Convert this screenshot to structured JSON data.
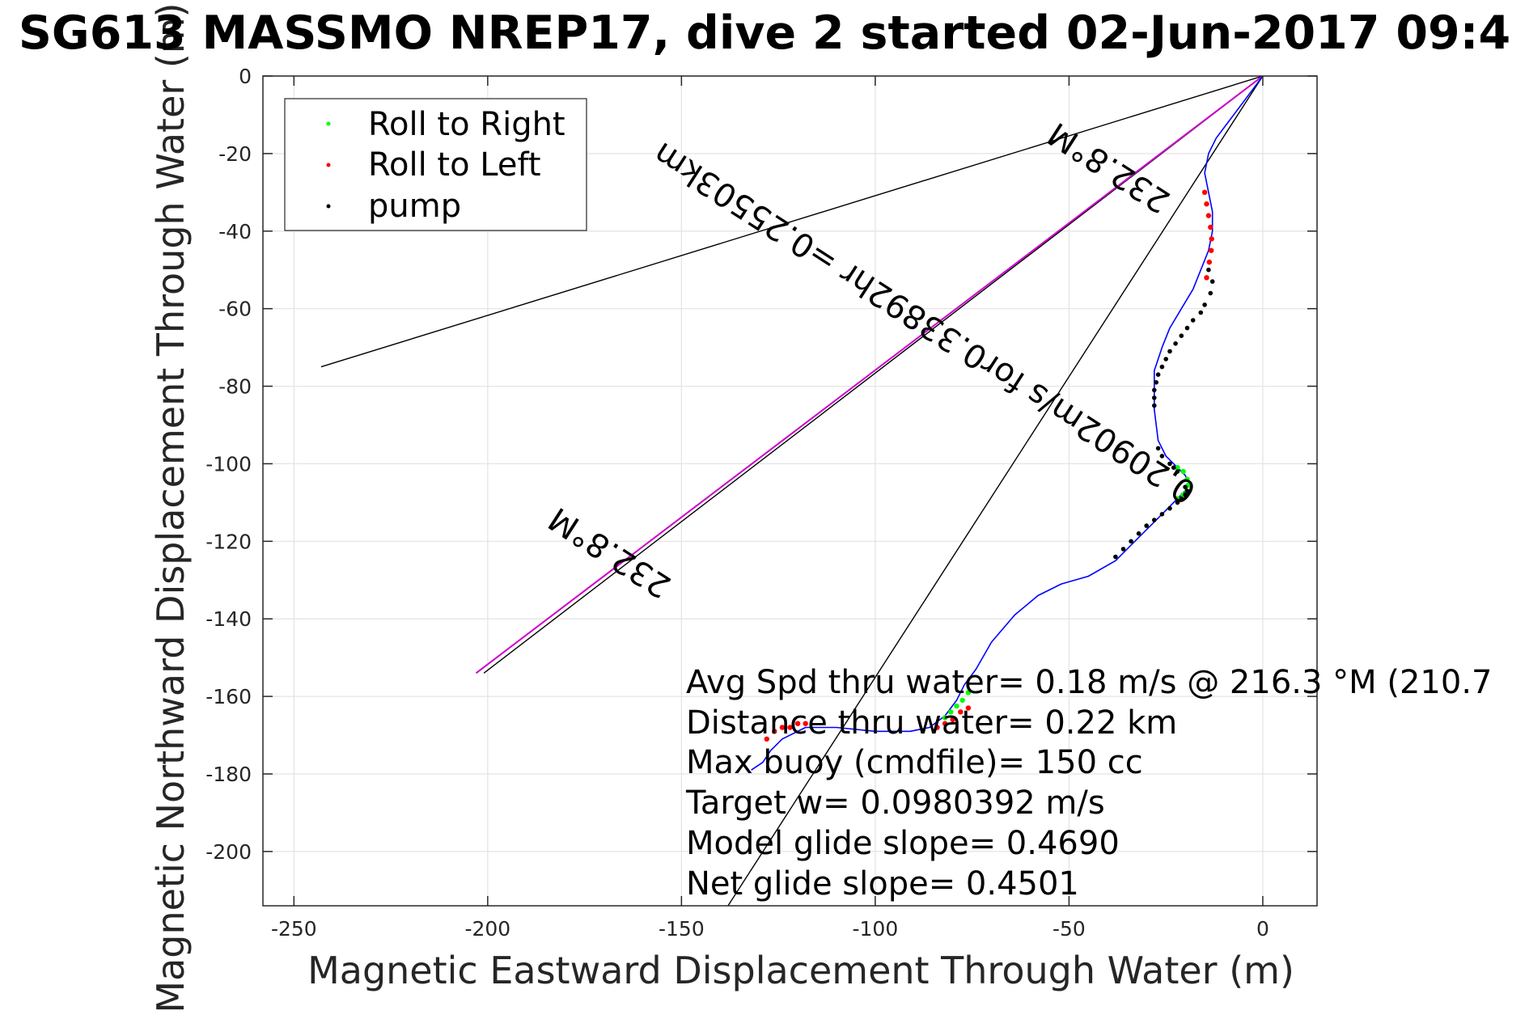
{
  "chart_data": {
    "type": "line",
    "title": "SG613 MASSMO NREP17, dive 2 started 02-Jun-2017 09:4",
    "xlabel": "Magnetic Eastward Displacement Through Water (m)",
    "ylabel": "Magnetic Northward Displacement Through Water (m)",
    "xlim": [
      -258,
      14
    ],
    "ylim": [
      -214,
      0
    ],
    "xticks": [
      -250,
      -200,
      -150,
      -100,
      -50,
      0
    ],
    "yticks": [
      0,
      -20,
      -40,
      -60,
      -80,
      -100,
      -120,
      -140,
      -160,
      -180,
      -200
    ],
    "grid": true,
    "legend": {
      "position": "top-left",
      "entries": [
        {
          "label": "Roll to Right",
          "color": "#00ff00",
          "marker": "dot"
        },
        {
          "label": "Roll to Left",
          "color": "#ff0000",
          "marker": "dot"
        },
        {
          "label": "pump",
          "color": "#000000",
          "marker": "dot"
        }
      ]
    },
    "series": [
      {
        "role": "track",
        "color": "#0000ff",
        "x": [
          0,
          -3,
          -6,
          -9,
          -12,
          -14,
          -15,
          -14,
          -13,
          -13,
          -14,
          -16,
          -18,
          -21,
          -24,
          -26,
          -28,
          -28,
          -27,
          -25,
          -22,
          -20,
          -19,
          -20,
          -22,
          -27,
          -33,
          -38,
          -45,
          -52,
          -58,
          -64,
          -70,
          -74,
          -77,
          -79,
          -82,
          -86,
          -91,
          -100,
          -110,
          -118,
          -124,
          -127,
          -129,
          -132
        ],
        "y": [
          0,
          -4,
          -8,
          -12,
          -16,
          -20,
          -25,
          -30,
          -35,
          -40,
          -45,
          -50,
          -55,
          -60,
          -65,
          -70,
          -76,
          -86,
          -94,
          -98,
          -101,
          -103,
          -105,
          -107,
          -109,
          -114,
          -120,
          -125,
          -129,
          -131,
          -134,
          -139,
          -146,
          -153,
          -157,
          -161,
          -165,
          -168,
          -169,
          -169,
          -168,
          -168,
          -171,
          -174,
          -177,
          -179
        ]
      },
      {
        "role": "roll-left",
        "color": "#ff0000",
        "x": [
          -15,
          -14.5,
          -14,
          -13.5,
          -13.2,
          -13.3,
          -13.8,
          -14.5,
          -76,
          -78,
          -80,
          -82,
          -84,
          -118,
          -120,
          -122,
          -124,
          -126,
          -128
        ],
        "y": [
          -30,
          -33,
          -36,
          -39,
          -42,
          -45,
          -48,
          -52,
          -163,
          -164,
          -166,
          -167,
          -168,
          -167,
          -167,
          -168,
          -168,
          -169,
          -171
        ]
      },
      {
        "role": "roll-right",
        "color": "#00ff00",
        "x": [
          -22,
          -20.5,
          -19.5,
          -19.2,
          -19.6,
          -20.6,
          -22,
          -76,
          -77.5,
          -79,
          -80.5,
          -82
        ],
        "y": [
          -101,
          -102,
          -104,
          -105.5,
          -107,
          -108,
          -109,
          -159,
          -161,
          -162.5,
          -164,
          -165.5
        ]
      },
      {
        "role": "pump",
        "color": "#000000",
        "x": [
          -14,
          -13,
          -13.5,
          -15,
          -16,
          -18,
          -19.5,
          -21,
          -22.5,
          -24,
          -25,
          -26,
          -27,
          -27.5,
          -28,
          -28,
          -28,
          -27,
          -26,
          -24,
          -23,
          -22,
          -20,
          -19.5,
          -20,
          -21,
          -22,
          -24,
          -26,
          -28,
          -30,
          -32,
          -34,
          -36,
          -38
        ],
        "y": [
          -50,
          -53,
          -56,
          -59,
          -61,
          -63,
          -65,
          -67,
          -69,
          -71,
          -73,
          -75,
          -77,
          -79,
          -81,
          -83,
          -85,
          -96,
          -98,
          -100,
          -101,
          -102,
          -106,
          -107,
          -108,
          -109,
          -110,
          -111.5,
          -113,
          -114.5,
          -116,
          -118,
          -120,
          -122,
          -124
        ]
      },
      {
        "role": "heading-line",
        "color": "#cc00cc",
        "x": [
          0,
          -203
        ],
        "y": [
          0,
          -154
        ]
      },
      {
        "role": "reference-line",
        "color": "#000000",
        "x": [
          0,
          -243
        ],
        "y": [
          0,
          -75
        ]
      },
      {
        "role": "reference-line",
        "color": "#000000",
        "x": [
          0,
          -201
        ],
        "y": [
          0,
          -154
        ]
      },
      {
        "role": "reference-line",
        "color": "#000000",
        "x": [
          0,
          -138
        ],
        "y": [
          0,
          -214
        ]
      }
    ],
    "line_labels": [
      "232.8°M",
      "0.20902m/s for0.33892hr =0.25503km",
      "232.8°M"
    ],
    "annotations": [
      "Avg Spd thru water=  0.18 m/s @ 216.3 °M (210.7",
      "Distance thru water=  0.22 km",
      "Max buoy (cmdfile)= 150 cc",
      "Target w= 0.0980392 m/s",
      "Model glide slope= 0.4690",
      "Net glide slope= 0.4501"
    ]
  }
}
